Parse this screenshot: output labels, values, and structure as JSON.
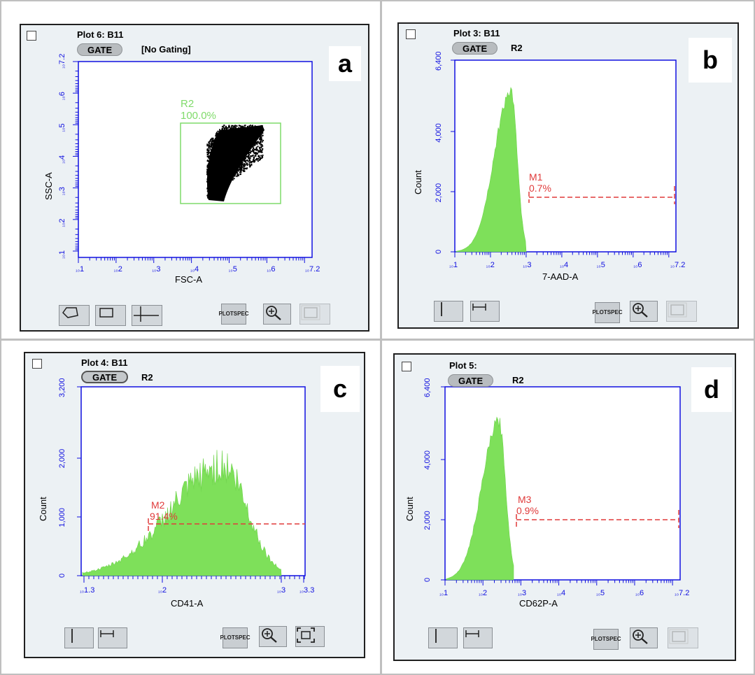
{
  "panels": [
    {
      "id": "a",
      "letter": "a",
      "title": "Plot 6: B11",
      "gate_label": "GATE",
      "gate_value": "[No Gating]",
      "xlabel": "FSC-A",
      "ylabel": "SSC-A",
      "x_ticks": [
        "1",
        "2",
        "3",
        "4",
        "5",
        "6",
        "7.2"
      ],
      "y_ticks": [
        "1",
        "2",
        "3",
        "4",
        "5",
        "6",
        "7.2"
      ],
      "region_name": "R2",
      "region_pct": "100.0%",
      "tools": [
        "polygon-tool",
        "rectangle-tool",
        "quadrant-tool"
      ],
      "plotspec": [
        "PLOT",
        "SPEC"
      ]
    },
    {
      "id": "b",
      "letter": "b",
      "title": "Plot 3: B11",
      "gate_label": "GATE",
      "gate_value": "R2",
      "xlabel": "7-AAD-A",
      "ylabel": "Count",
      "x_ticks": [
        "1",
        "2",
        "3",
        "4",
        "5",
        "6",
        "7.2"
      ],
      "y_ticks": [
        "0",
        "2,000",
        "4,000",
        "6,400"
      ],
      "marker_name": "M1",
      "marker_pct": "0.7%",
      "tools": [
        "vertical-line-tool",
        "range-tool"
      ],
      "plotspec": [
        "PLOT",
        "SPEC"
      ]
    },
    {
      "id": "c",
      "letter": "c",
      "title": "Plot 4: B11",
      "gate_label": "GATE",
      "gate_value": "R2",
      "xlabel": "CD41-A",
      "ylabel": "Count",
      "x_ticks": [
        "1.3",
        "2",
        "3",
        "3.3"
      ],
      "y_ticks": [
        "0",
        "1,000",
        "2,000",
        "3,200"
      ],
      "marker_name": "M2",
      "marker_pct": "91.4%",
      "tools": [
        "vertical-line-tool",
        "range-tool"
      ],
      "plotspec": [
        "PLOT",
        "SPEC"
      ]
    },
    {
      "id": "d",
      "letter": "d",
      "title": "Plot 5:",
      "gate_label": "GATE",
      "gate_value": "R2",
      "xlabel": "CD62P-A",
      "ylabel": "Count",
      "x_ticks": [
        "1",
        "2",
        "3",
        "4",
        "5",
        "6",
        "7.2"
      ],
      "y_ticks": [
        "0",
        "2,000",
        "4,000",
        "6,400"
      ],
      "marker_name": "M3",
      "marker_pct": "0.9%",
      "tools": [
        "vertical-line-tool",
        "range-tool"
      ],
      "plotspec": [
        "PLOT",
        "SPEC"
      ]
    }
  ],
  "colors": {
    "axis": "#1010e0",
    "histogram": "#7ee05a",
    "marker": "#e03a3a",
    "region": "#7fdb6a",
    "panel_bg": "#ecf1f4",
    "button_bg": "#d2d7db"
  }
}
